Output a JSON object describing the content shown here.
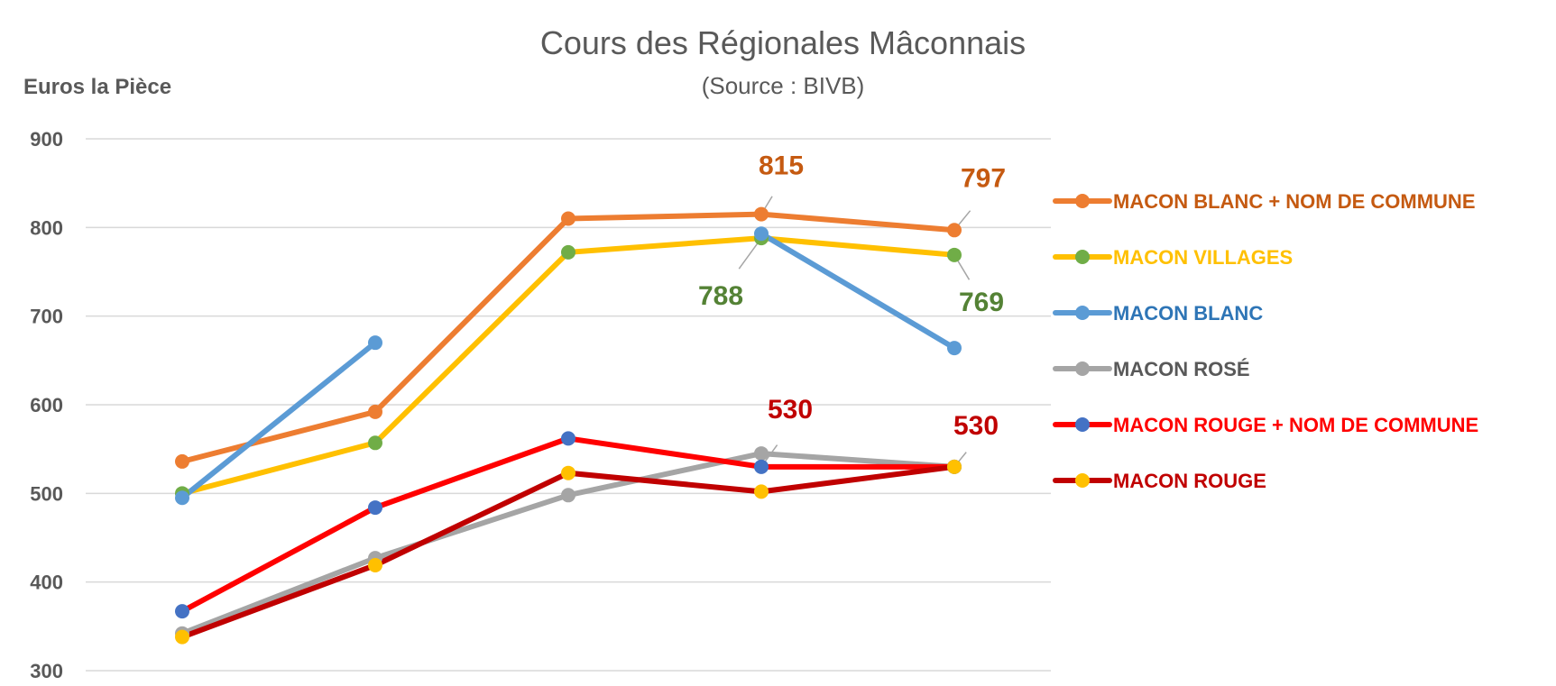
{
  "chart_data": {
    "type": "line",
    "title": "Cours des Régionales Mâconnais",
    "subtitle": "(Source : BIVB)",
    "ylabel": "Euros la Pièce",
    "xlabel": "",
    "ylim": [
      300,
      900
    ],
    "yticks": [
      300,
      400,
      500,
      600,
      700,
      800,
      900
    ],
    "grid": true,
    "legend_position": "right",
    "num_points": 5,
    "series": [
      {
        "name": "MACON BLANC + NOM DE COMMUNE",
        "color": "#ED7D31",
        "marker_color": "#ED7D31",
        "text_color": "#C55A11",
        "values": [
          536,
          592,
          810,
          815,
          797
        ]
      },
      {
        "name": "MACON VILLAGES",
        "color": "#FFC000",
        "marker_color": "#70AD47",
        "text_color": "#FFC000",
        "values": [
          500,
          557,
          772,
          788,
          769
        ]
      },
      {
        "name": "MACON BLANC",
        "color": "#5B9BD5",
        "marker_color": "#5B9BD5",
        "text_color": "#2E75B6",
        "values": [
          495,
          670,
          null,
          793,
          664
        ]
      },
      {
        "name": "MACON ROSÉ",
        "color": "#A5A5A5",
        "marker_color": "#A5A5A5",
        "text_color": "#595959",
        "values": [
          342,
          427,
          498,
          545,
          530
        ]
      },
      {
        "name": "MACON ROUGE + NOM DE COMMUNE",
        "color": "#FF0000",
        "marker_color": "#4472C4",
        "text_color": "#FF0000",
        "values": [
          367,
          484,
          562,
          530,
          530
        ]
      },
      {
        "name": "MACON ROUGE",
        "color": "#C00000",
        "marker_color": "#FFC000",
        "text_color": "#C00000",
        "values": [
          338,
          419,
          523,
          502,
          530
        ]
      }
    ],
    "annotations": [
      {
        "text": "815",
        "series": 0,
        "point": 3,
        "color": "#C55A11"
      },
      {
        "text": "797",
        "series": 0,
        "point": 4,
        "color": "#C55A11"
      },
      {
        "text": "788",
        "series": 1,
        "point": 3,
        "color": "#548235"
      },
      {
        "text": "769",
        "series": 1,
        "point": 4,
        "color": "#548235"
      },
      {
        "text": "530",
        "series": 4,
        "point": 3,
        "color": "#C00000"
      },
      {
        "text": "530",
        "series": 5,
        "point": 4,
        "color": "#C00000"
      }
    ]
  }
}
